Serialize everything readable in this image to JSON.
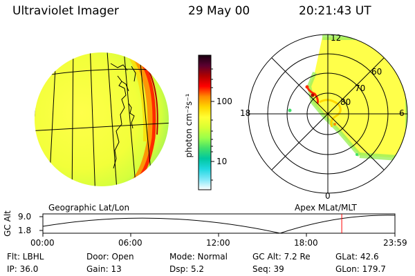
{
  "header": {
    "instrument": "Ultraviolet Imager",
    "date": "29 May 00",
    "time": "20:21:43 UT"
  },
  "colorbar": {
    "unit_label": "photon cm⁻²s⁻¹",
    "ticks": [
      "100",
      "10"
    ],
    "stops": [
      "#1a0010",
      "#5a0030",
      "#b00000",
      "#ff0000",
      "#ff8c00",
      "#ffd700",
      "#ffff33",
      "#d8ff33",
      "#9aff4a",
      "#40e06a",
      "#00c8a0",
      "#20d8e0",
      "#80e8f8",
      "#ffffff"
    ]
  },
  "polar_plot": {
    "mlt_labels": {
      "top": "12",
      "left": "18",
      "right": "6",
      "bottom": "0"
    },
    "lat_labels": [
      "60",
      "70",
      "80"
    ]
  },
  "projections": {
    "left": "Geographic Lat/Lon",
    "right": "Apex MLat/MLT"
  },
  "altitude_plot": {
    "ylabel": "GC Alt",
    "y_ticks": [
      "9.0",
      "1.8"
    ],
    "x_ticks": [
      "00:00",
      "06:00",
      "12:00",
      "18:00",
      "23:59"
    ],
    "y_range": [
      1.8,
      9.0
    ],
    "current_time_hours": 20.36,
    "marker_color": "#ff0000"
  },
  "status": {
    "flt": "Flt: LBHL",
    "ip": "IP: 36.0",
    "door": "Door: Open",
    "gain": "Gain: 13",
    "mode": "Mode: Normal",
    "dsp": "Dsp:    5.2",
    "gc_alt": "GC Alt: 7.2 Re",
    "seq": "Seq: 39",
    "glat": "GLat:   42.6",
    "glon": "GLon: 179.7"
  }
}
